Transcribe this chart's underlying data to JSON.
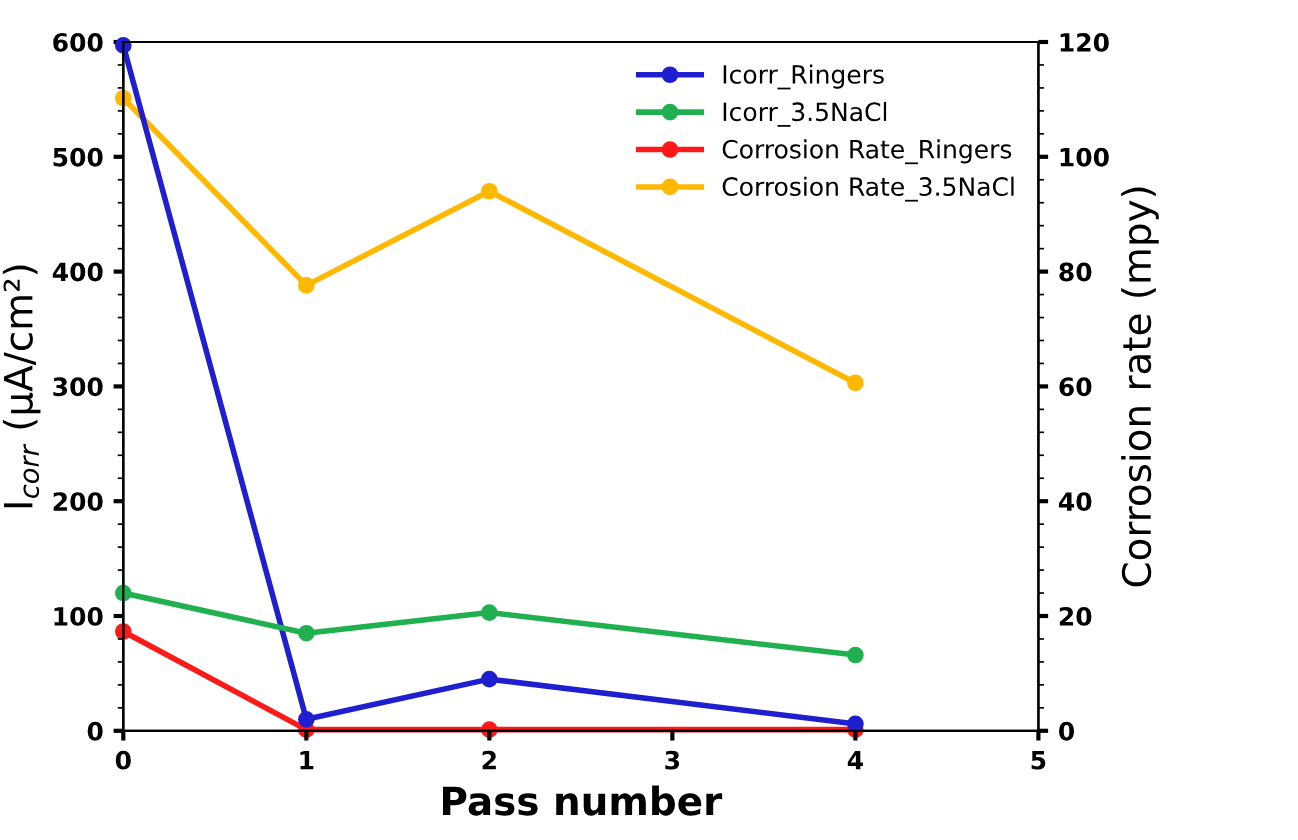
{
  "chart_data": {
    "type": "line",
    "xlabel": "Pass number",
    "ylabel": "I$_{corr}$ (μA/cm²)",
    "y2label": "Corrosion rate (mpy)",
    "x": [
      0,
      1,
      2,
      4
    ],
    "series": [
      {
        "name": "Icorr_Ringers",
        "color": "#1f1fd0",
        "values": [
          597,
          10,
          45,
          6
        ]
      },
      {
        "name": "Icorr_3.5NaCl",
        "color": "#20b050",
        "values": [
          120,
          85,
          103,
          66
        ]
      },
      {
        "name": "Corrosion Rate_Ringers",
        "color": "#ff1a1a",
        "axis": "y2",
        "values": [
          17.3,
          0.2,
          0.2,
          0.2
        ]
      },
      {
        "name": "Corrosion Rate_3.5NaCl",
        "color": "#ffb800",
        "axis": "y2",
        "values": [
          110.2,
          77.6,
          94,
          60.6
        ]
      }
    ],
    "xlim": [
      0,
      5
    ],
    "xticks": [
      0,
      1,
      2,
      3,
      4,
      5
    ],
    "ylim": [
      0,
      600
    ],
    "yticks": [
      0,
      100,
      200,
      300,
      400,
      500,
      600
    ],
    "y2lim": [
      0,
      120
    ],
    "y2ticks": [
      0,
      20,
      40,
      60,
      80,
      100,
      120
    ],
    "marker": "circle",
    "line_style": "solid",
    "grid": false,
    "legend": "top right"
  }
}
